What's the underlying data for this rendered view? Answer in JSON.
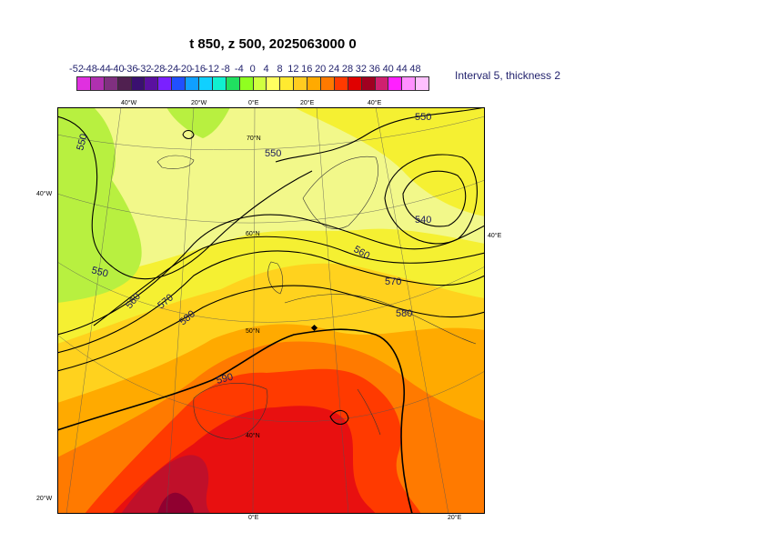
{
  "title": "t 850, z 500, 2025063000 0",
  "legend": {
    "labels": [
      "-52",
      "-48",
      "-44",
      "-40",
      "-36",
      "-32",
      "-28",
      "-24",
      "-20",
      "-16",
      "-12",
      "-8",
      "-4",
      "0",
      "4",
      "8",
      "12",
      "16",
      "20",
      "24",
      "28",
      "32",
      "36",
      "40",
      "44",
      "48"
    ],
    "colors": [
      "#e030e0",
      "#b030b0",
      "#803080",
      "#502050",
      "#3a1070",
      "#5a10a0",
      "#7a20ff",
      "#2050ff",
      "#10a0ff",
      "#10d0ff",
      "#10f0d0",
      "#20e060",
      "#90ff20",
      "#d0ff40",
      "#ffff60",
      "#ffea30",
      "#ffcc20",
      "#ffaa00",
      "#ff7a00",
      "#ff3a00",
      "#e00000",
      "#a00020",
      "#d02070",
      "#ff20ff",
      "#ff90ff",
      "#ffc0ff"
    ],
    "note": "Interval 5, thickness 2"
  },
  "map": {
    "lon_ticks_top": [
      "40°W",
      "20°W",
      "0°E",
      "20°E",
      "40°E"
    ],
    "lon_ticks_bottom": [
      "0°E",
      "20°E"
    ],
    "lat_ticks_left": [
      "40°W",
      "20°W"
    ],
    "lat_ticks_right": [
      "40°E"
    ],
    "lat_labels": [
      "70°N",
      "60°N",
      "50°N",
      "40°N"
    ],
    "contour_labels": [
      "550",
      "550",
      "550",
      "550",
      "540",
      "560",
      "560",
      "570",
      "570",
      "580",
      "580",
      "590"
    ],
    "fill_colors": {
      "green": "#b8f040",
      "light_yellow": "#f2f88a",
      "yellow": "#f5f032",
      "gold": "#ffd21e",
      "orange": "#ffaa00",
      "dark_orange": "#ff7a00",
      "red": "#ff3a00",
      "deep_red": "#e81010",
      "maroon": "#c0102a",
      "dark_maroon": "#900030"
    }
  }
}
